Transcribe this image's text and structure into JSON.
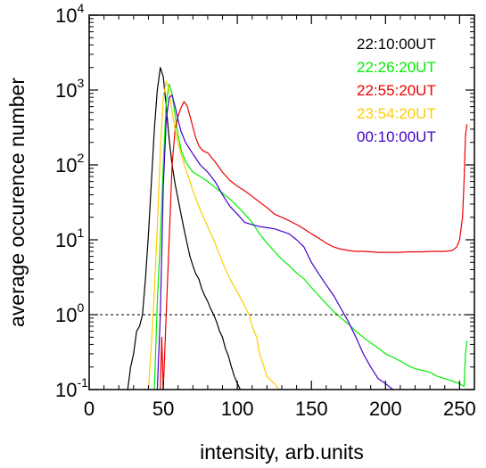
{
  "chart_data": {
    "type": "line",
    "title": "",
    "xlabel": "intensity, arb.units",
    "ylabel": "average occurence number",
    "xlim": [
      0,
      260
    ],
    "ylim": [
      0.1,
      10000
    ],
    "yscale": "log",
    "x_ticks": [
      {
        "value": 0,
        "label": "0"
      },
      {
        "value": 50,
        "label": "50"
      },
      {
        "value": 100,
        "label": "100"
      },
      {
        "value": 150,
        "label": "150"
      },
      {
        "value": 200,
        "label": "200"
      },
      {
        "value": 250,
        "label": "250"
      }
    ],
    "y_ticks": [
      {
        "value": 0.1,
        "base": "10",
        "exp": "-1"
      },
      {
        "value": 1,
        "base": "10",
        "exp": "0"
      },
      {
        "value": 10,
        "base": "10",
        "exp": "1"
      },
      {
        "value": 100,
        "base": "10",
        "exp": "2"
      },
      {
        "value": 1000,
        "base": "10",
        "exp": "3"
      },
      {
        "value": 10000,
        "base": "10",
        "exp": "4"
      }
    ],
    "reference_line": {
      "y": 1,
      "style": "dashed",
      "color": "#000000"
    },
    "legend_position": "top-right",
    "series": [
      {
        "name": "22:10:00UT",
        "color": "#000000",
        "points": [
          [
            26,
            0.1
          ],
          [
            28,
            0.2
          ],
          [
            30,
            0.3
          ],
          [
            32,
            0.6
          ],
          [
            34,
            0.7
          ],
          [
            36,
            1.0
          ],
          [
            38,
            3
          ],
          [
            40,
            12
          ],
          [
            42,
            60
          ],
          [
            44,
            300
          ],
          [
            46,
            1000
          ],
          [
            48,
            2000
          ],
          [
            50,
            1500
          ],
          [
            52,
            600
          ],
          [
            54,
            220
          ],
          [
            56,
            100
          ],
          [
            58,
            55
          ],
          [
            60,
            35
          ],
          [
            62,
            22
          ],
          [
            64,
            14
          ],
          [
            66,
            9
          ],
          [
            68,
            6
          ],
          [
            70,
            4.5
          ],
          [
            72,
            3.5
          ],
          [
            74,
            3
          ],
          [
            76,
            2.2
          ],
          [
            78,
            1.8
          ],
          [
            80,
            1.5
          ],
          [
            82,
            1.2
          ],
          [
            84,
            1.0
          ],
          [
            86,
            0.8
          ],
          [
            88,
            0.6
          ],
          [
            90,
            0.5
          ],
          [
            92,
            0.35
          ],
          [
            94,
            0.28
          ],
          [
            96,
            0.2
          ],
          [
            98,
            0.15
          ],
          [
            100,
            0.12
          ],
          [
            102,
            0.1
          ]
        ]
      },
      {
        "name": "22:26:20UT",
        "color": "#00ee00",
        "points": [
          [
            44,
            0.1
          ],
          [
            46,
            1.5
          ],
          [
            48,
            10
          ],
          [
            50,
            100
          ],
          [
            52,
            700
          ],
          [
            54,
            1200
          ],
          [
            56,
            900
          ],
          [
            58,
            450
          ],
          [
            60,
            250
          ],
          [
            62,
            160
          ],
          [
            65,
            110
          ],
          [
            70,
            80
          ],
          [
            75,
            70
          ],
          [
            80,
            60
          ],
          [
            85,
            50
          ],
          [
            90,
            42
          ],
          [
            95,
            35
          ],
          [
            100,
            28
          ],
          [
            105,
            22
          ],
          [
            110,
            17
          ],
          [
            115,
            12
          ],
          [
            120,
            9
          ],
          [
            125,
            7
          ],
          [
            130,
            5.5
          ],
          [
            135,
            4.5
          ],
          [
            140,
            3.6
          ],
          [
            145,
            3
          ],
          [
            150,
            2.3
          ],
          [
            155,
            1.8
          ],
          [
            160,
            1.4
          ],
          [
            165,
            1.1
          ],
          [
            170,
            0.9
          ],
          [
            175,
            0.75
          ],
          [
            180,
            0.6
          ],
          [
            185,
            0.5
          ],
          [
            190,
            0.42
          ],
          [
            195,
            0.36
          ],
          [
            200,
            0.3
          ],
          [
            205,
            0.27
          ],
          [
            210,
            0.24
          ],
          [
            215,
            0.21
          ],
          [
            220,
            0.19
          ],
          [
            225,
            0.18
          ],
          [
            230,
            0.17
          ],
          [
            235,
            0.15
          ],
          [
            240,
            0.14
          ],
          [
            245,
            0.13
          ],
          [
            250,
            0.12
          ],
          [
            253,
            0.11
          ],
          [
            254,
            0.3
          ],
          [
            255,
            0.45
          ]
        ]
      },
      {
        "name": "22:55:20UT",
        "color": "#ee0000",
        "points": [
          [
            48,
            0.1
          ],
          [
            49,
            0.5
          ],
          [
            50,
            0.1
          ],
          [
            52,
            1
          ],
          [
            54,
            10
          ],
          [
            56,
            100
          ],
          [
            58,
            300
          ],
          [
            60,
            450
          ],
          [
            62,
            580
          ],
          [
            64,
            700
          ],
          [
            66,
            620
          ],
          [
            68,
            450
          ],
          [
            70,
            320
          ],
          [
            72,
            230
          ],
          [
            74,
            180
          ],
          [
            76,
            160
          ],
          [
            78,
            150
          ],
          [
            80,
            145
          ],
          [
            82,
            130
          ],
          [
            85,
            110
          ],
          [
            90,
            80
          ],
          [
            95,
            62
          ],
          [
            100,
            52
          ],
          [
            105,
            45
          ],
          [
            110,
            38
          ],
          [
            115,
            32
          ],
          [
            120,
            27
          ],
          [
            125,
            22
          ],
          [
            130,
            20
          ],
          [
            135,
            18
          ],
          [
            140,
            16
          ],
          [
            145,
            14
          ],
          [
            150,
            12
          ],
          [
            155,
            10.5
          ],
          [
            160,
            9
          ],
          [
            165,
            8
          ],
          [
            170,
            7.5
          ],
          [
            175,
            7.2
          ],
          [
            180,
            7
          ],
          [
            185,
            7
          ],
          [
            190,
            6.9
          ],
          [
            195,
            6.8
          ],
          [
            200,
            6.8
          ],
          [
            205,
            6.8
          ],
          [
            210,
            6.8
          ],
          [
            215,
            6.9
          ],
          [
            220,
            6.9
          ],
          [
            225,
            6.9
          ],
          [
            230,
            7
          ],
          [
            235,
            7
          ],
          [
            240,
            7
          ],
          [
            245,
            7.2
          ],
          [
            248,
            8
          ],
          [
            250,
            10
          ],
          [
            252,
            20
          ],
          [
            253,
            60
          ],
          [
            254,
            250
          ],
          [
            255,
            350
          ]
        ]
      },
      {
        "name": "23:54:20UT",
        "color": "#ffcc00",
        "points": [
          [
            40,
            0.1
          ],
          [
            42,
            0.4
          ],
          [
            44,
            2
          ],
          [
            46,
            15
          ],
          [
            48,
            150
          ],
          [
            50,
            800
          ],
          [
            52,
            1300
          ],
          [
            54,
            1000
          ],
          [
            56,
            500
          ],
          [
            58,
            300
          ],
          [
            60,
            200
          ],
          [
            62,
            140
          ],
          [
            65,
            90
          ],
          [
            68,
            60
          ],
          [
            70,
            45
          ],
          [
            75,
            25
          ],
          [
            80,
            15
          ],
          [
            85,
            9
          ],
          [
            90,
            5
          ],
          [
            95,
            3
          ],
          [
            100,
            2
          ],
          [
            105,
            1.3
          ],
          [
            108,
            1
          ],
          [
            110,
            0.7
          ],
          [
            113,
            0.5
          ],
          [
            115,
            0.3
          ],
          [
            118,
            0.2
          ],
          [
            120,
            0.15
          ],
          [
            125,
            0.12
          ],
          [
            128,
            0.1
          ]
        ]
      },
      {
        "name": "00:10:00UT",
        "color": "#4400cc",
        "points": [
          [
            46,
            0.1
          ],
          [
            48,
            1
          ],
          [
            50,
            50
          ],
          [
            52,
            400
          ],
          [
            54,
            800
          ],
          [
            56,
            850
          ],
          [
            58,
            600
          ],
          [
            60,
            400
          ],
          [
            62,
            280
          ],
          [
            65,
            200
          ],
          [
            70,
            140
          ],
          [
            75,
            100
          ],
          [
            80,
            80
          ],
          [
            85,
            60
          ],
          [
            90,
            40
          ],
          [
            95,
            28
          ],
          [
            100,
            22
          ],
          [
            105,
            17
          ],
          [
            110,
            16
          ],
          [
            115,
            15
          ],
          [
            120,
            14.5
          ],
          [
            125,
            14
          ],
          [
            130,
            13
          ],
          [
            135,
            12
          ],
          [
            140,
            10
          ],
          [
            145,
            8
          ],
          [
            150,
            5
          ],
          [
            155,
            3.5
          ],
          [
            160,
            2.5
          ],
          [
            165,
            1.8
          ],
          [
            170,
            1.2
          ],
          [
            175,
            0.8
          ],
          [
            180,
            0.5
          ],
          [
            185,
            0.3
          ],
          [
            190,
            0.2
          ],
          [
            195,
            0.14
          ],
          [
            200,
            0.12
          ],
          [
            205,
            0.1
          ]
        ]
      }
    ]
  }
}
